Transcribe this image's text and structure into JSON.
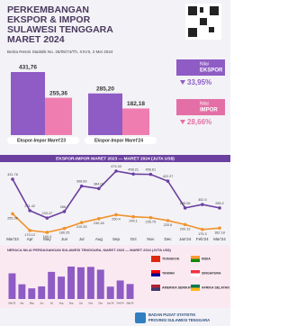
{
  "header": {
    "title_lines": [
      "PERKEMBANGAN",
      "EKSPOR & IMPOR",
      "SULAWESI TENGGARA",
      "MARET 2024"
    ],
    "subtitle": "Berita Resmi Statistik No. 26/05/74/Th. XXVII, 2 Mei 2024"
  },
  "summary": [
    {
      "label": "Nilai",
      "change": "33,95%",
      "color": "#8e5cc4"
    },
    {
      "label": "Nilai",
      "change": "28,66%",
      "color": "#e46fa6"
    }
  ],
  "chart_data": [
    {
      "type": "bar",
      "categories": [
        "Ekspor-Impor Maret'23",
        "Ekspor-Impor Maret'24"
      ],
      "series": [
        {
          "name": "EKSPOR",
          "color": "#8e5cc4",
          "values": [
            431.76,
            285.2
          ],
          "value_labels": [
            "431,76",
            "285,20"
          ]
        },
        {
          "name": "IMPOR",
          "color": "#f07db0",
          "values": [
            255.36,
            182.18
          ],
          "value_labels": [
            "255,36",
            "182,18"
          ]
        }
      ]
    },
    {
      "type": "line",
      "title": "EKSPOR-IMPOR MARET 2023 — MARET 2024 (JUTA US$)",
      "categories": [
        "Mar'23",
        "Apr",
        "May",
        "Jun",
        "Jul",
        "Aug",
        "Sep",
        "Oct",
        "Nov",
        "Dec",
        "Jan'24",
        "Feb'24",
        "Mar'24"
      ],
      "series": [
        {
          "name": "Ekspor",
          "color": "#6a3fa0",
          "values": [
            431.76,
            271.42,
            233.47,
            266.7,
            396.83,
            384.04,
            473.33,
            458.21,
            456.61,
            422.27,
            285.06,
            302.5,
            285.2
          ]
        },
        {
          "name": "Impor",
          "color": "#f0922b",
          "values": [
            255.36,
            170.12,
            160.4,
            180.25,
            210.33,
            230.18,
            250.4,
            240.1,
            235.75,
            220.6,
            200.12,
            175.3,
            182.18
          ]
        }
      ]
    },
    {
      "type": "bar",
      "title": "NERACA NILAI PERDAGANGAN SULAWESI TENGGARA, MARET 2023 — MARET 2024 (JUTA US$)",
      "color": "#8e5cc4",
      "categories": [
        "Mar'23",
        "Apr",
        "May",
        "Jun",
        "Jul",
        "Aug",
        "Sep",
        "Oct",
        "Nov",
        "Dec",
        "Jan'24",
        "Feb'24",
        "Mar'24"
      ],
      "values": [
        176.4,
        101.3,
        73.07,
        86.45,
        186.5,
        153.86,
        222.93,
        218.11,
        220.86,
        201.67,
        84.94,
        127.2,
        103.02
      ]
    }
  ],
  "countries": [
    "TIONGKOK",
    "INDIA",
    "TAIWAN",
    "SINGAPURA",
    "AMERIKA SERIKAT",
    "AFRIKA SELATAN"
  ],
  "footer": [
    "BADAN PUSAT STATISTIK",
    "PROVINSI SULAWESI TENGGARA"
  ]
}
